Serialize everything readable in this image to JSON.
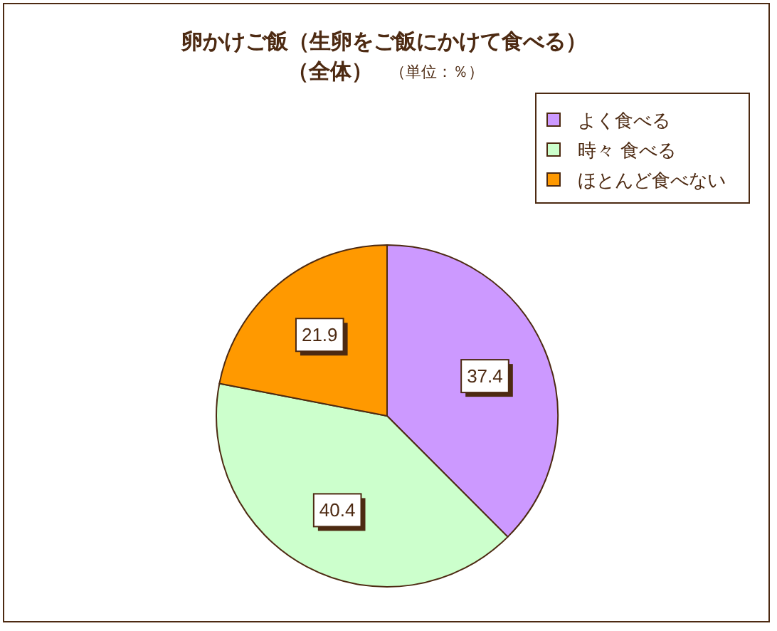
{
  "chart_data": {
    "type": "pie",
    "title": "卵かけご飯（生卵をご飯にかけて食べる）",
    "subtitle": "（全体）",
    "annotations": [
      "（単位：％）"
    ],
    "categories": [
      "よく食べる",
      "時々 食べる",
      "ほとんど食べない"
    ],
    "values": [
      37.4,
      40.4,
      21.9
    ],
    "colors": [
      "#cc99ff",
      "#ccffcc",
      "#ff9900"
    ],
    "data_labels": true,
    "legend": "top right"
  }
}
